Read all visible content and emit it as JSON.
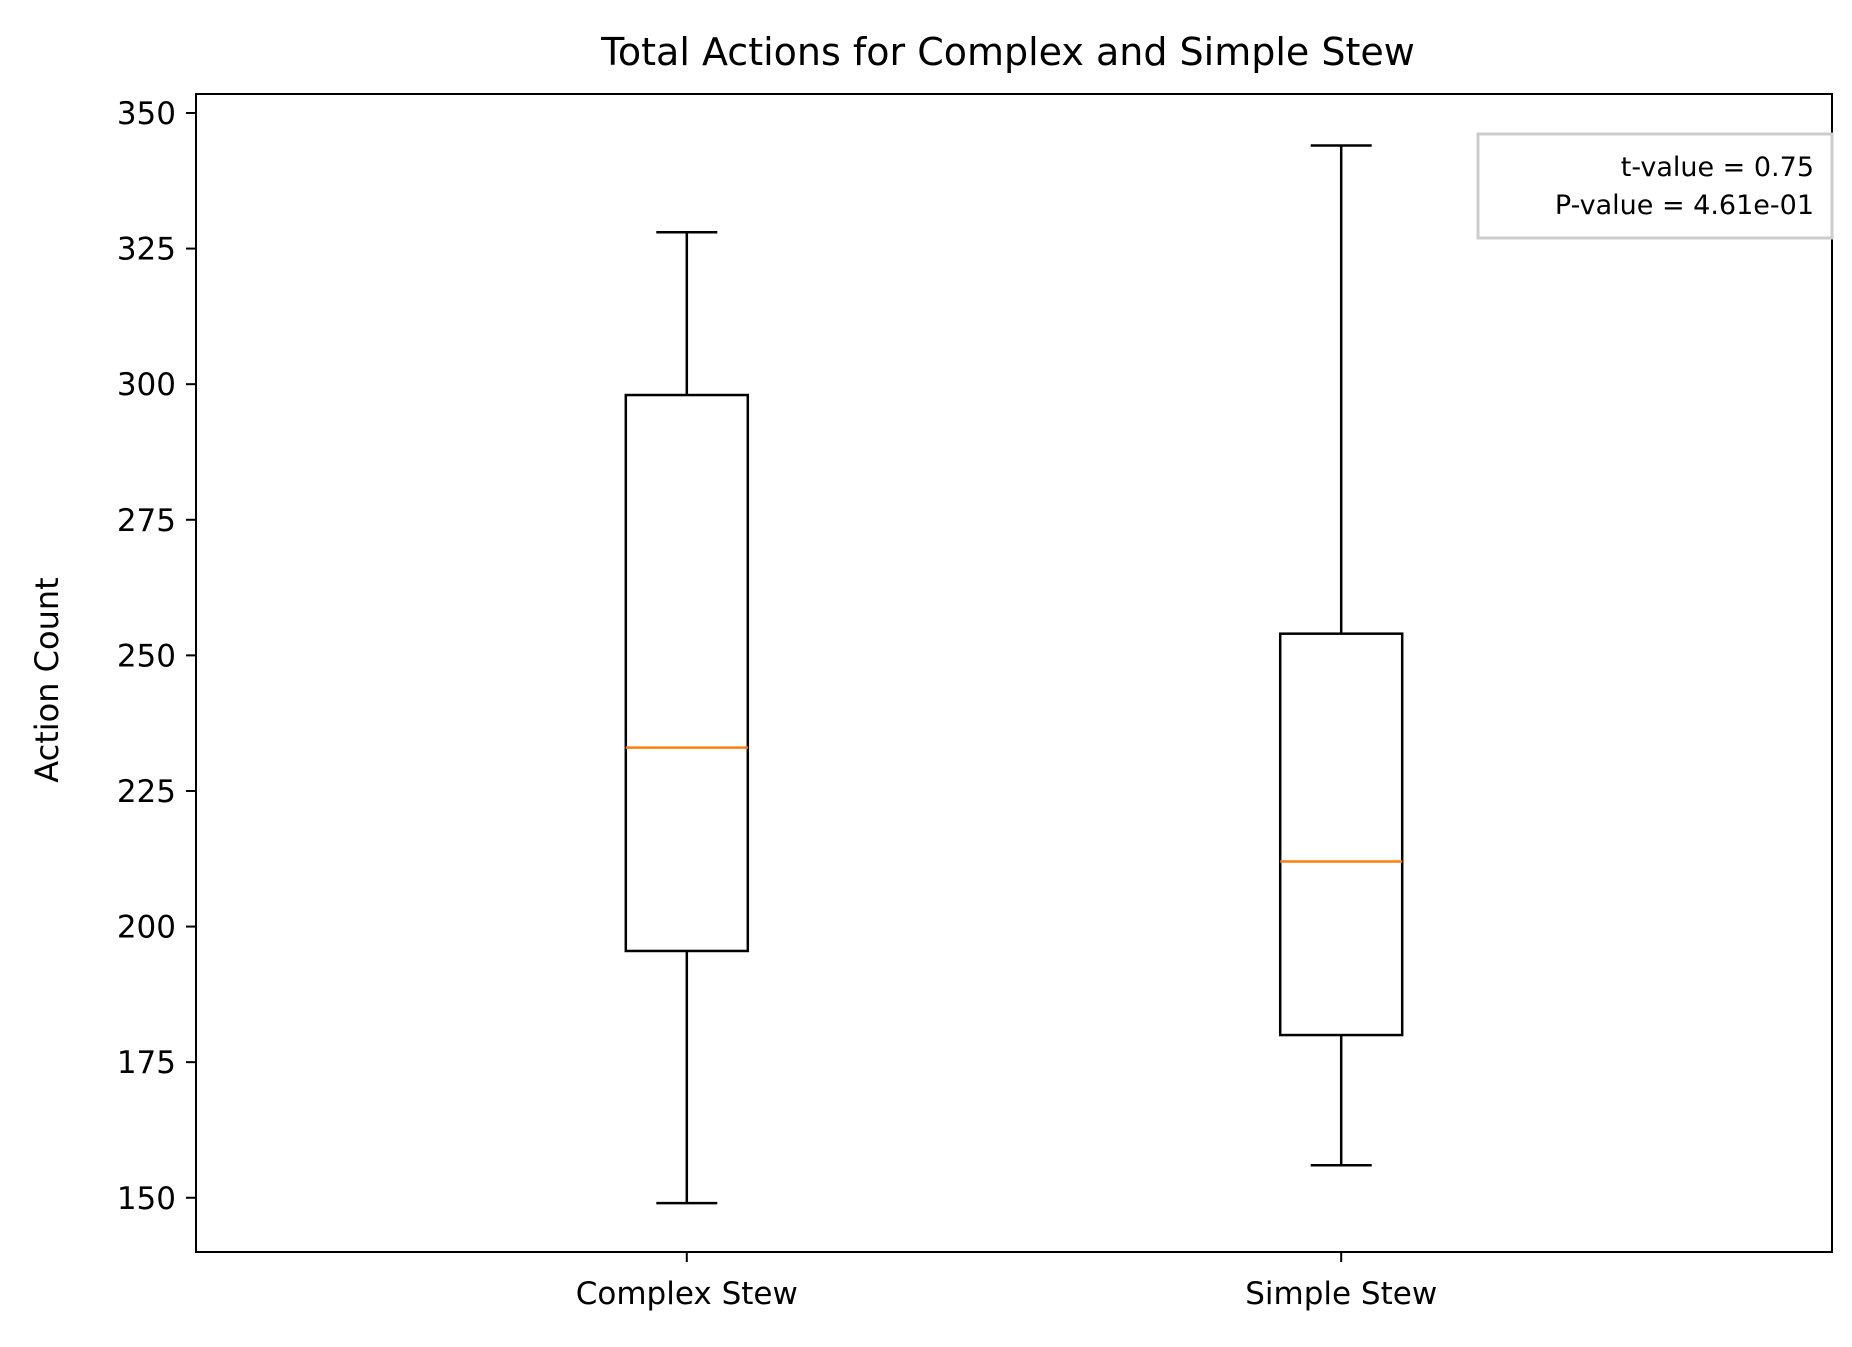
{
  "chart_data": {
    "type": "box",
    "title": "Total Actions for Complex and Simple Stew",
    "xlabel": "",
    "ylabel": "Action Count",
    "ylim": [
      140,
      353.5
    ],
    "yticks": [
      150,
      175,
      200,
      225,
      250,
      275,
      300,
      325,
      350
    ],
    "categories": [
      "Complex Stew",
      "Simple Stew"
    ],
    "boxes": [
      {
        "category": "Complex Stew",
        "whisker_low": 149,
        "q1": 195.5,
        "median": 233,
        "q3": 298,
        "whisker_high": 328
      },
      {
        "category": "Simple Stew",
        "whisker_low": 156,
        "q1": 180,
        "median": 212,
        "q3": 254,
        "whisker_high": 344
      }
    ],
    "grid": false,
    "annotation": {
      "lines": [
        "t-value = 0.75",
        "P-value = 4.61e-01"
      ],
      "placement": "top-right"
    },
    "colors": {
      "box": "#000000",
      "median": "#ff7f0e",
      "annotation_border": "#cccccc"
    }
  }
}
